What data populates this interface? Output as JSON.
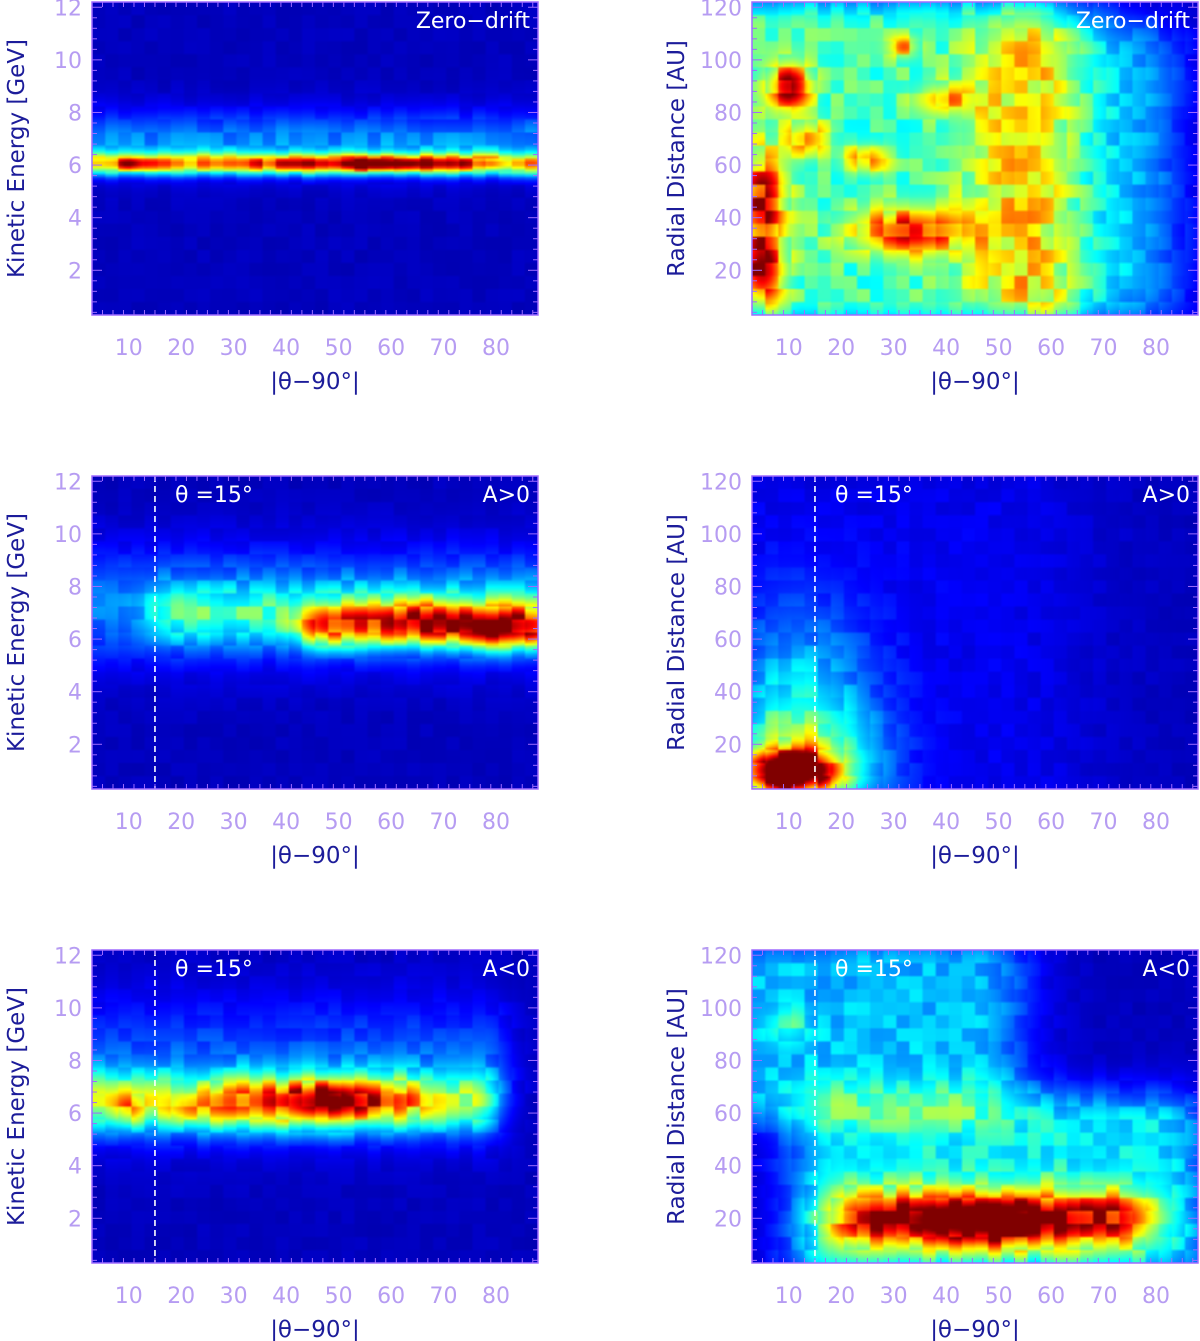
{
  "colors": {
    "axis": "#9f6bff",
    "tick_label": "#b69cf2",
    "axis_title": "#1c1c9a",
    "background": "#00007f",
    "annotation": "#ffffff"
  },
  "colormap": "jet",
  "chart_data": [
    {
      "type": "heatmap",
      "id": "energy-zero-drift",
      "annotation": "Zero−drift",
      "xlabel": "|θ−90°|",
      "ylabel": "Kinetic Energy [GeV]",
      "xlim": [
        3,
        88
      ],
      "ylim": [
        0.3,
        12.2
      ],
      "xticks": [
        10,
        20,
        30,
        40,
        50,
        60,
        70,
        80
      ],
      "yticks": [
        2,
        4,
        6,
        8,
        10,
        12
      ],
      "blobs": [
        {
          "x": [
            3,
            87
          ],
          "y": 6.05,
          "sx": 3,
          "sy": 0.28,
          "v": 0.58
        },
        {
          "x": [
            3,
            87
          ],
          "y": 6.9,
          "sx": 3,
          "sy": 0.8,
          "v": 0.2
        },
        {
          "x": [
            40,
            70
          ],
          "y": 6.05,
          "sx": 4,
          "sy": 0.2,
          "v": 0.2
        },
        {
          "x": 57,
          "y": 6.05,
          "sx": 4,
          "sy": 0.18,
          "v": 0.3
        },
        {
          "x": 10,
          "y": 6.05,
          "sx": 1.5,
          "sy": 0.15,
          "v": 0.15
        },
        {
          "x": 79,
          "y": 6.05,
          "sx": 1.5,
          "sy": 0.15,
          "v": 0.15
        }
      ]
    },
    {
      "type": "heatmap",
      "id": "radial-zero-drift",
      "annotation": "Zero−drift",
      "xlabel": "|θ−90°|",
      "ylabel": "Radial Distance [AU]",
      "xlim": [
        3,
        88
      ],
      "ylim": [
        3,
        122
      ],
      "xticks": [
        10,
        20,
        30,
        40,
        50,
        60,
        70,
        80
      ],
      "yticks": [
        20,
        40,
        60,
        80,
        100,
        120
      ],
      "blobs": [
        {
          "x": [
            3,
            55
          ],
          "y": [
            10,
            112
          ],
          "sx": 9,
          "sy": 10,
          "v": 0.38
        },
        {
          "x": [
            55,
            75
          ],
          "y": [
            15,
            100
          ],
          "sx": 8,
          "sy": 12,
          "v": 0.22
        },
        {
          "x": 33,
          "y": 35,
          "sx": 8,
          "sy": 6,
          "v": 0.45
        },
        {
          "x": 10,
          "y": 90,
          "sx": 3,
          "sy": 6,
          "v": 0.5
        },
        {
          "x": 5,
          "y": 45,
          "sx": 3,
          "sy": 14,
          "v": 0.5
        },
        {
          "x": 5,
          "y": 18,
          "sx": 3,
          "sy": 8,
          "v": 0.45
        },
        {
          "x": 13,
          "y": 70,
          "sx": 3,
          "sy": 5,
          "v": 0.3
        },
        {
          "x": 25,
          "y": 62,
          "sx": 3,
          "sy": 4,
          "v": 0.3
        },
        {
          "x": 40,
          "y": 85,
          "sx": 4,
          "sy": 4,
          "v": 0.25
        },
        {
          "x": 32,
          "y": 105,
          "sx": 2,
          "sy": 3,
          "v": 0.25
        }
      ]
    },
    {
      "type": "heatmap",
      "id": "energy-a-pos",
      "annotation": "A>0",
      "marker_label": "θ  =15°",
      "marker_x": 15,
      "xlabel": "|θ−90°|",
      "ylabel": "Kinetic Energy [GeV]",
      "xlim": [
        3,
        88
      ],
      "ylim": [
        0.3,
        12.2
      ],
      "xticks": [
        10,
        20,
        30,
        40,
        50,
        60,
        70,
        80
      ],
      "yticks": [
        2,
        4,
        6,
        8,
        10,
        12
      ],
      "blobs": [
        {
          "x": [
            3,
            87
          ],
          "y": 7.3,
          "sx": 5,
          "sy": 1.5,
          "v": 0.2
        },
        {
          "x": [
            20,
            87
          ],
          "y": 6.9,
          "sx": 5,
          "sy": 0.8,
          "v": 0.2
        },
        {
          "x": [
            48,
            87
          ],
          "y": 6.5,
          "sx": 4,
          "sy": 0.55,
          "v": 0.45
        },
        {
          "x": 80,
          "y": 6.3,
          "sx": 5,
          "sy": 0.5,
          "v": 0.25
        },
        {
          "x": 68,
          "y": 6.8,
          "sx": 5,
          "sy": 0.5,
          "v": 0.2
        }
      ]
    },
    {
      "type": "heatmap",
      "id": "radial-a-pos",
      "annotation": "A>0",
      "marker_label": "θ  =15°",
      "marker_x": 15,
      "xlabel": "|θ−90°|",
      "ylabel": "Radial Distance [AU]",
      "xlim": [
        3,
        88
      ],
      "ylim": [
        3,
        122
      ],
      "xticks": [
        10,
        20,
        30,
        40,
        50,
        60,
        70,
        80
      ],
      "yticks": [
        20,
        40,
        60,
        80,
        100,
        120
      ],
      "blobs": [
        {
          "x": 10,
          "y": 10,
          "sx": 6,
          "sy": 5,
          "v": 0.95
        },
        {
          "x": 12,
          "y": 12,
          "sx": 10,
          "sy": 16,
          "v": 0.35
        },
        {
          "x": 12,
          "y": 40,
          "sx": 10,
          "sy": 25,
          "v": 0.2
        },
        {
          "x": [
            3,
            50
          ],
          "y": [
            5,
            100
          ],
          "sx": 14,
          "sy": 30,
          "v": 0.05
        }
      ]
    },
    {
      "type": "heatmap",
      "id": "energy-a-neg",
      "annotation": "A<0",
      "marker_label": "θ  =15°",
      "marker_x": 15,
      "xlabel": "|θ−90°|",
      "ylabel": "Kinetic Energy [GeV]",
      "xlim": [
        3,
        88
      ],
      "ylim": [
        0.3,
        12.2
      ],
      "xticks": [
        10,
        20,
        30,
        40,
        50,
        60,
        70,
        80
      ],
      "yticks": [
        2,
        4,
        6,
        8,
        10,
        12
      ],
      "blobs": [
        {
          "x": [
            3,
            75
          ],
          "y": 6.4,
          "sx": 4,
          "sy": 0.8,
          "v": 0.4
        },
        {
          "x": [
            3,
            78
          ],
          "y": 7.8,
          "sx": 4,
          "sy": 1.8,
          "v": 0.15
        },
        {
          "x": [
            30,
            60
          ],
          "y": 6.4,
          "sx": 4,
          "sy": 0.6,
          "v": 0.25
        },
        {
          "x": 47,
          "y": 6.4,
          "sx": 5,
          "sy": 0.5,
          "v": 0.35
        },
        {
          "x": 10,
          "y": 6.1,
          "sx": 2,
          "sy": 0.4,
          "v": 0.2
        },
        {
          "x": 22,
          "y": 6.1,
          "sx": 3,
          "sy": 0.4,
          "v": 0.15
        }
      ]
    },
    {
      "type": "heatmap",
      "id": "radial-a-neg",
      "annotation": "A<0",
      "marker_label": "θ  =15°",
      "marker_x": 15,
      "xlabel": "|θ−90°|",
      "ylabel": "Radial Distance [AU]",
      "xlim": [
        3,
        88
      ],
      "ylim": [
        3,
        122
      ],
      "xticks": [
        10,
        20,
        30,
        40,
        50,
        60,
        70,
        80
      ],
      "yticks": [
        20,
        40,
        60,
        80,
        100,
        120
      ],
      "blobs": [
        {
          "x": [
            25,
            72
          ],
          "y": 20,
          "sx": 6,
          "sy": 8,
          "v": 0.55
        },
        {
          "x": 48,
          "y": 18,
          "sx": 10,
          "sy": 6,
          "v": 0.4
        },
        {
          "x": [
            20,
            80
          ],
          "y": [
            8,
            55
          ],
          "sx": 8,
          "sy": 10,
          "v": 0.3
        },
        {
          "x": [
            3,
            45
          ],
          "y": [
            70,
            115
          ],
          "sx": 8,
          "sy": 10,
          "v": 0.25
        },
        {
          "x": 10,
          "y": 93,
          "sx": 3,
          "sy": 5,
          "v": 0.12
        }
      ]
    }
  ]
}
